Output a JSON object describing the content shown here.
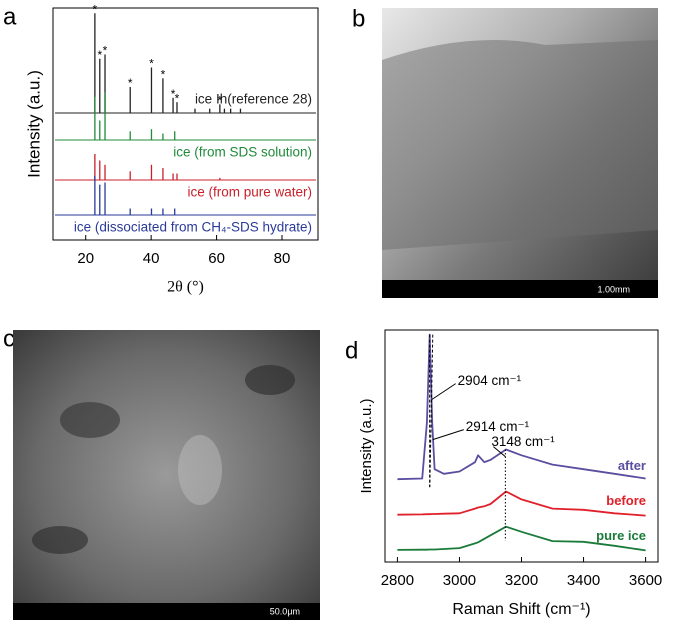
{
  "panel_labels": [
    "a",
    "b",
    "c",
    "d"
  ],
  "images": [
    {
      "scale_bar": "1.00mm"
    },
    {
      "scale_bar": "50.0μm"
    }
  ],
  "chart_data": [
    {
      "type": "spikes",
      "xlabel": "2θ (°)",
      "ylabel": "Intensity (a.u.)",
      "xlim": [
        10,
        91
      ],
      "xticks": [
        20,
        40,
        60,
        80
      ],
      "ylim": [
        0,
        107
      ],
      "series": [
        {
          "name": "ice Ih(reference 28)",
          "color": "#222222",
          "x": [
            22.8,
            24.3,
            25.9,
            33.6,
            40.1,
            43.6,
            46.7,
            47.9,
            53.4,
            57.9,
            61.0,
            62.4,
            64.3,
            67.3
          ],
          "values": [
            46,
            25,
            27,
            12,
            21,
            16,
            7,
            5,
            2,
            2,
            4,
            2,
            2,
            2
          ]
        },
        {
          "name": "ice (from SDS solution)",
          "color": "#1f8a3a",
          "x": [
            22.8,
            24.3,
            25.9,
            33.6,
            40.1,
            43.6,
            47.2
          ],
          "values": [
            20,
            9,
            22,
            4,
            5,
            3,
            4
          ]
        },
        {
          "name": "ice (from pure water)",
          "color": "#c8202a",
          "x": [
            22.8,
            24.3,
            25.9,
            33.6,
            40.1,
            43.6,
            46.7,
            47.9,
            61.0
          ],
          "values": [
            12,
            9,
            7,
            4,
            7,
            5.5,
            3,
            3,
            1
          ]
        },
        {
          "name": "ice (dissociated from CH₄-SDS hydrate)",
          "color": "#2a3a9a",
          "x": [
            22.8,
            24.3,
            25.9,
            33.6,
            40.1,
            43.6,
            47.2
          ],
          "values": [
            18,
            14,
            15,
            3,
            3,
            3,
            3
          ]
        }
      ],
      "annotations": [
        {
          "x": 22.8,
          "label": "*"
        },
        {
          "x": 24.3,
          "label": "*"
        },
        {
          "x": 25.9,
          "label": "*"
        },
        {
          "x": 33.6,
          "label": "*"
        },
        {
          "x": 40.1,
          "label": "*"
        },
        {
          "x": 43.6,
          "label": "*"
        },
        {
          "x": 46.7,
          "label": "*"
        },
        {
          "x": 47.9,
          "label": "*"
        },
        {
          "x": 61.0,
          "label": "*"
        }
      ]
    },
    {
      "type": "line",
      "xlabel": "Raman Shift (cm⁻¹)",
      "ylabel": "Intensity (a.u.)",
      "xlim": [
        2760,
        3640
      ],
      "xticks": [
        2800,
        3000,
        3200,
        3400,
        3600
      ],
      "ylim": [
        0,
        100
      ],
      "x": [
        2800,
        2880,
        2895,
        2904,
        2912,
        2920,
        2950,
        3000,
        3050,
        3060,
        3080,
        3100,
        3150,
        3200,
        3300,
        3400,
        3500,
        3600
      ],
      "series": [
        {
          "name": "after",
          "color": "#5b4ea0",
          "values": [
            35.7,
            36,
            60,
            98,
            60,
            40,
            38,
            39,
            43,
            46,
            43,
            44,
            48.5,
            46,
            42,
            40,
            38,
            36
          ]
        },
        {
          "name": "before",
          "color": "#e0202a",
          "values": [
            20.4,
            20.5,
            20.6,
            20.6,
            20.7,
            20.7,
            20.8,
            21,
            23,
            23.5,
            24,
            25,
            30.4,
            27,
            23,
            22.5,
            21,
            20
          ]
        },
        {
          "name": "pure ice",
          "color": "#1a7a3a",
          "values": [
            5.2,
            5.3,
            5.3,
            5.4,
            5.4,
            5.4,
            5.6,
            6,
            8,
            8.5,
            10,
            11.5,
            15.2,
            13,
            9,
            8.7,
            7,
            5
          ]
        }
      ],
      "annotations": [
        {
          "x": 2904,
          "label": "2904 cm⁻¹"
        },
        {
          "x": 2914,
          "label": "2914 cm⁻¹"
        },
        {
          "x": 3148,
          "label": "3148 cm⁻¹"
        }
      ]
    }
  ]
}
